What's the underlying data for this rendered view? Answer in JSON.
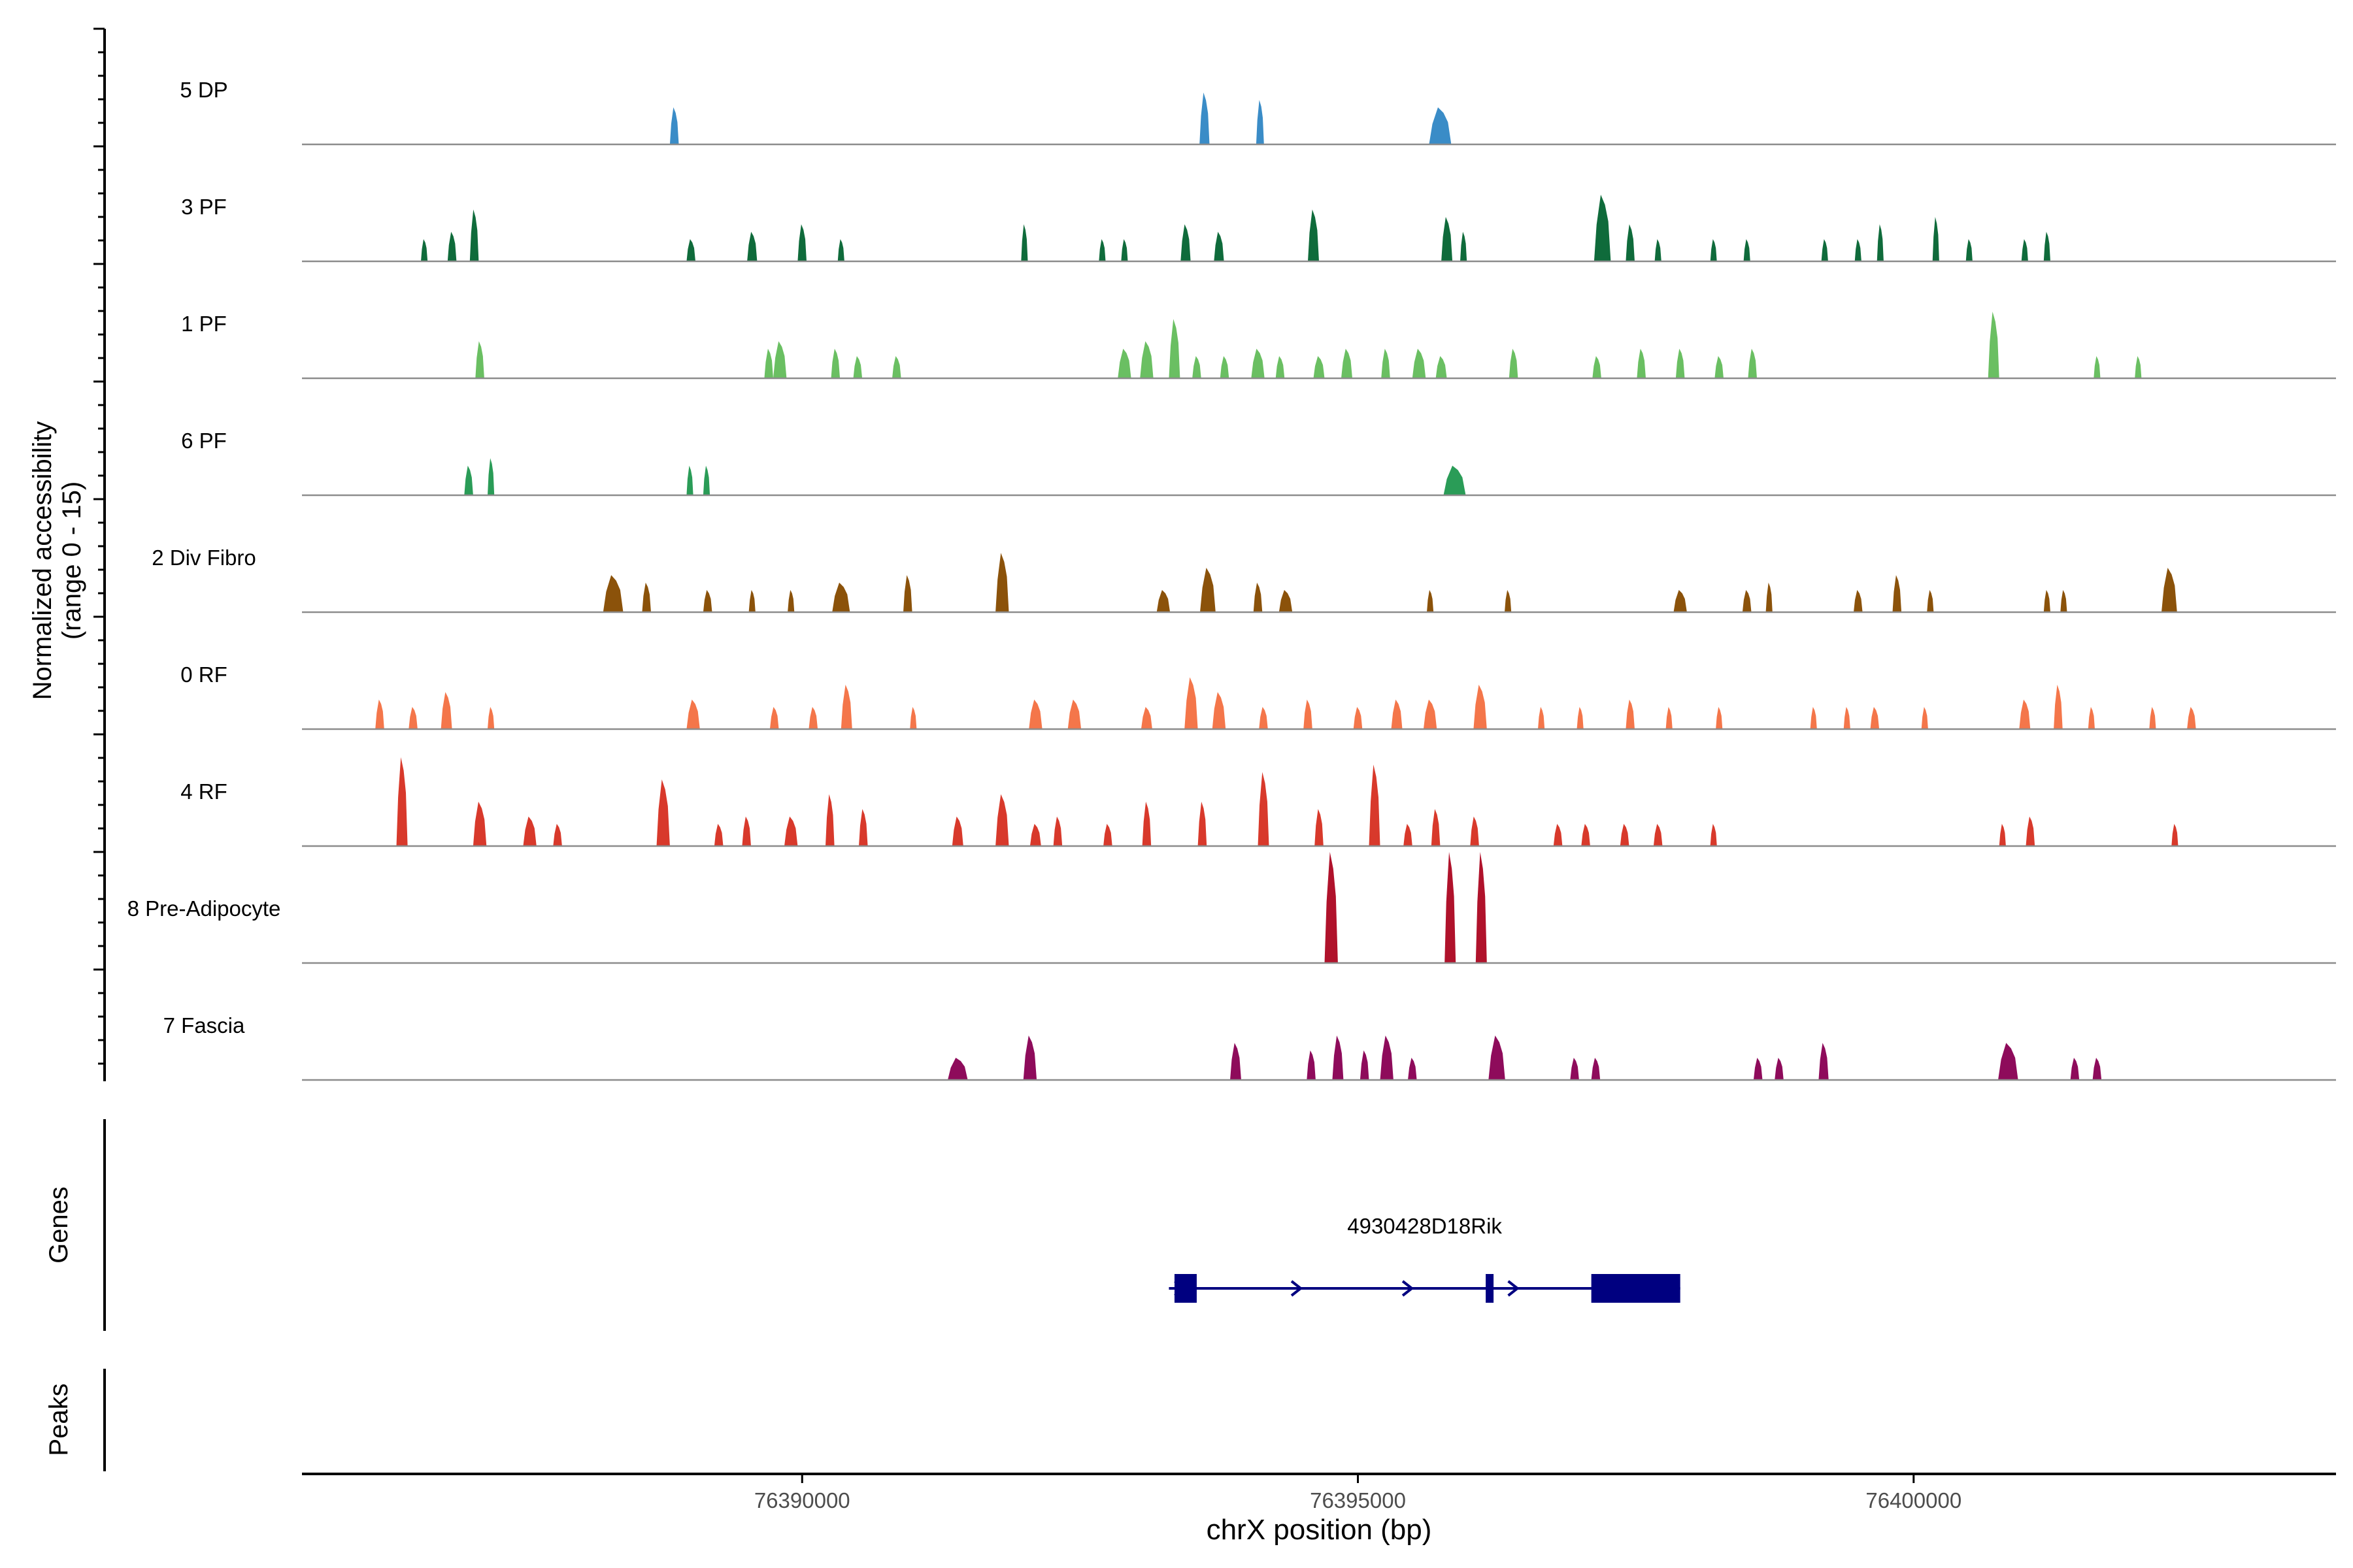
{
  "chart_data": {
    "type": "area",
    "chromosome": "chrX",
    "xlabel": "chrX position (bp)",
    "ylabel": "Normalized accessibility",
    "ylabel_range": "(range 0 - 15)",
    "ylim": [
      0,
      15
    ],
    "xlim": [
      76385500,
      76403800
    ],
    "x_ticks": [
      {
        "value": 76390000,
        "label": "76390000"
      },
      {
        "value": 76395000,
        "label": "76395000"
      },
      {
        "value": 76400000,
        "label": "76400000"
      }
    ],
    "series": [
      {
        "name": "5 DP",
        "color": "#3a8cc7",
        "peaks": [
          [
            76388850,
            80,
            5
          ],
          [
            76393620,
            90,
            7
          ],
          [
            76394120,
            70,
            6
          ],
          [
            76395740,
            200,
            5
          ]
        ]
      },
      {
        "name": "3 PF",
        "color": "#0f6b3b",
        "peaks": [
          [
            76386600,
            60,
            3
          ],
          [
            76386850,
            80,
            4
          ],
          [
            76387050,
            80,
            7
          ],
          [
            76389000,
            80,
            3
          ],
          [
            76389550,
            90,
            4
          ],
          [
            76390000,
            80,
            5
          ],
          [
            76390350,
            60,
            3
          ],
          [
            76392000,
            60,
            5
          ],
          [
            76392700,
            60,
            3
          ],
          [
            76392900,
            60,
            3
          ],
          [
            76393450,
            90,
            5
          ],
          [
            76393750,
            90,
            4
          ],
          [
            76394600,
            100,
            7
          ],
          [
            76395800,
            100,
            6
          ],
          [
            76395950,
            60,
            4
          ],
          [
            76397200,
            150,
            9
          ],
          [
            76397450,
            80,
            5
          ],
          [
            76397700,
            60,
            3
          ],
          [
            76398200,
            50,
            3
          ],
          [
            76398500,
            60,
            3
          ],
          [
            76399200,
            60,
            3
          ],
          [
            76399500,
            60,
            3
          ],
          [
            76399700,
            60,
            5
          ],
          [
            76400200,
            60,
            6
          ],
          [
            76400500,
            60,
            3
          ],
          [
            76401000,
            60,
            3
          ],
          [
            76401200,
            60,
            4
          ]
        ]
      },
      {
        "name": "1 PF",
        "color": "#6abf62",
        "peaks": [
          [
            76387100,
            80,
            5
          ],
          [
            76389700,
            80,
            4
          ],
          [
            76389800,
            120,
            5
          ],
          [
            76390300,
            80,
            4
          ],
          [
            76390500,
            80,
            3
          ],
          [
            76390850,
            80,
            3
          ],
          [
            76392900,
            120,
            4
          ],
          [
            76393100,
            120,
            5
          ],
          [
            76393350,
            100,
            8
          ],
          [
            76393550,
            80,
            3
          ],
          [
            76393800,
            80,
            3
          ],
          [
            76394100,
            120,
            4
          ],
          [
            76394300,
            80,
            3
          ],
          [
            76394650,
            100,
            3
          ],
          [
            76394900,
            100,
            4
          ],
          [
            76395250,
            80,
            4
          ],
          [
            76395550,
            120,
            4
          ],
          [
            76395750,
            100,
            3
          ],
          [
            76396400,
            80,
            4
          ],
          [
            76397150,
            80,
            3
          ],
          [
            76397550,
            80,
            4
          ],
          [
            76397900,
            80,
            4
          ],
          [
            76398250,
            80,
            3
          ],
          [
            76398550,
            80,
            4
          ],
          [
            76400720,
            100,
            9
          ],
          [
            76401650,
            60,
            3
          ],
          [
            76402020,
            60,
            3
          ]
        ]
      },
      {
        "name": "6 PF",
        "color": "#2a9c57",
        "peaks": [
          [
            76387000,
            80,
            4
          ],
          [
            76387200,
            60,
            5
          ],
          [
            76388990,
            60,
            4
          ],
          [
            76389140,
            60,
            4
          ],
          [
            76395870,
            200,
            4
          ]
        ]
      },
      {
        "name": "2 Div Fibro",
        "color": "#8b520a",
        "peaks": [
          [
            76388300,
            180,
            5
          ],
          [
            76388600,
            80,
            4
          ],
          [
            76389150,
            80,
            3
          ],
          [
            76389550,
            60,
            3
          ],
          [
            76389900,
            60,
            3
          ],
          [
            76390350,
            160,
            4
          ],
          [
            76390950,
            80,
            5
          ],
          [
            76391800,
            120,
            8
          ],
          [
            76393250,
            120,
            3
          ],
          [
            76393650,
            140,
            6
          ],
          [
            76394100,
            80,
            4
          ],
          [
            76394350,
            120,
            3
          ],
          [
            76395650,
            60,
            3
          ],
          [
            76396350,
            60,
            3
          ],
          [
            76397900,
            120,
            3
          ],
          [
            76398500,
            80,
            3
          ],
          [
            76398700,
            60,
            4
          ],
          [
            76399500,
            80,
            3
          ],
          [
            76399850,
            80,
            5
          ],
          [
            76400150,
            60,
            3
          ],
          [
            76401200,
            60,
            3
          ],
          [
            76401350,
            60,
            3
          ],
          [
            76402300,
            140,
            6
          ]
        ]
      },
      {
        "name": "0 RF",
        "color": "#f4764a",
        "peaks": [
          [
            76386200,
            80,
            4
          ],
          [
            76386500,
            80,
            3
          ],
          [
            76386800,
            100,
            5
          ],
          [
            76387200,
            60,
            3
          ],
          [
            76389020,
            120,
            4
          ],
          [
            76389750,
            80,
            3
          ],
          [
            76390100,
            80,
            3
          ],
          [
            76390400,
            100,
            6
          ],
          [
            76391000,
            60,
            3
          ],
          [
            76392100,
            120,
            4
          ],
          [
            76392450,
            120,
            4
          ],
          [
            76393100,
            100,
            3
          ],
          [
            76393500,
            120,
            7
          ],
          [
            76393750,
            120,
            5
          ],
          [
            76394150,
            80,
            3
          ],
          [
            76394550,
            80,
            4
          ],
          [
            76395000,
            80,
            3
          ],
          [
            76395350,
            100,
            4
          ],
          [
            76395650,
            120,
            4
          ],
          [
            76396100,
            120,
            6
          ],
          [
            76396650,
            60,
            3
          ],
          [
            76397000,
            60,
            3
          ],
          [
            76397450,
            80,
            4
          ],
          [
            76397800,
            60,
            3
          ],
          [
            76398250,
            60,
            3
          ],
          [
            76399100,
            60,
            3
          ],
          [
            76399400,
            60,
            3
          ],
          [
            76399650,
            80,
            3
          ],
          [
            76400100,
            60,
            3
          ],
          [
            76401000,
            100,
            4
          ],
          [
            76401300,
            80,
            6
          ],
          [
            76401600,
            60,
            3
          ],
          [
            76402150,
            60,
            3
          ],
          [
            76402500,
            80,
            3
          ]
        ]
      },
      {
        "name": "4 RF",
        "color": "#d8392b",
        "peaks": [
          [
            76386400,
            100,
            12
          ],
          [
            76387100,
            120,
            6
          ],
          [
            76387550,
            120,
            4
          ],
          [
            76387800,
            80,
            3
          ],
          [
            76388750,
            120,
            9
          ],
          [
            76389250,
            80,
            3
          ],
          [
            76389500,
            80,
            4
          ],
          [
            76389900,
            120,
            4
          ],
          [
            76390250,
            80,
            7
          ],
          [
            76390550,
            80,
            5
          ],
          [
            76391400,
            100,
            4
          ],
          [
            76391800,
            120,
            7
          ],
          [
            76392100,
            100,
            3
          ],
          [
            76392300,
            80,
            4
          ],
          [
            76392750,
            80,
            3
          ],
          [
            76393100,
            80,
            6
          ],
          [
            76393600,
            80,
            6
          ],
          [
            76394150,
            100,
            10
          ],
          [
            76394650,
            80,
            5
          ],
          [
            76395150,
            100,
            11
          ],
          [
            76395450,
            80,
            3
          ],
          [
            76395700,
            80,
            5
          ],
          [
            76396050,
            80,
            4
          ],
          [
            76396800,
            80,
            3
          ],
          [
            76397050,
            80,
            3
          ],
          [
            76397400,
            80,
            3
          ],
          [
            76397700,
            80,
            3
          ],
          [
            76398200,
            60,
            3
          ],
          [
            76400800,
            60,
            3
          ],
          [
            76401050,
            80,
            4
          ],
          [
            76402350,
            60,
            3
          ]
        ]
      },
      {
        "name": "8 Pre-Adipocyte",
        "color": "#b0122b",
        "peaks": [
          [
            76394760,
            120,
            15
          ],
          [
            76395830,
            100,
            15
          ],
          [
            76396110,
            100,
            15
          ]
        ]
      },
      {
        "name": "7 Fascia",
        "color": "#8e0b5b",
        "peaks": [
          [
            76391400,
            180,
            3
          ],
          [
            76392050,
            120,
            6
          ],
          [
            76393900,
            100,
            5
          ],
          [
            76394580,
            80,
            4
          ],
          [
            76394820,
            100,
            6
          ],
          [
            76395060,
            80,
            4
          ],
          [
            76395260,
            120,
            6
          ],
          [
            76395490,
            80,
            3
          ],
          [
            76396250,
            150,
            6
          ],
          [
            76396950,
            80,
            3
          ],
          [
            76397140,
            80,
            3
          ],
          [
            76398600,
            80,
            3
          ],
          [
            76398790,
            80,
            3
          ],
          [
            76399190,
            90,
            5
          ],
          [
            76400850,
            180,
            5
          ],
          [
            76401450,
            80,
            3
          ],
          [
            76401650,
            80,
            3
          ]
        ]
      }
    ],
    "genes_track": {
      "label": "Genes",
      "gene_name": "4930428D18Rik",
      "color": "#000080",
      "strand": "+",
      "start": 76393300,
      "end": 76397900,
      "exons": [
        [
          76393350,
          76393550
        ],
        [
          76396150,
          76396210
        ],
        [
          76397100,
          76397900
        ]
      ]
    },
    "peaks_track": {
      "label": "Peaks",
      "peaks": []
    }
  }
}
